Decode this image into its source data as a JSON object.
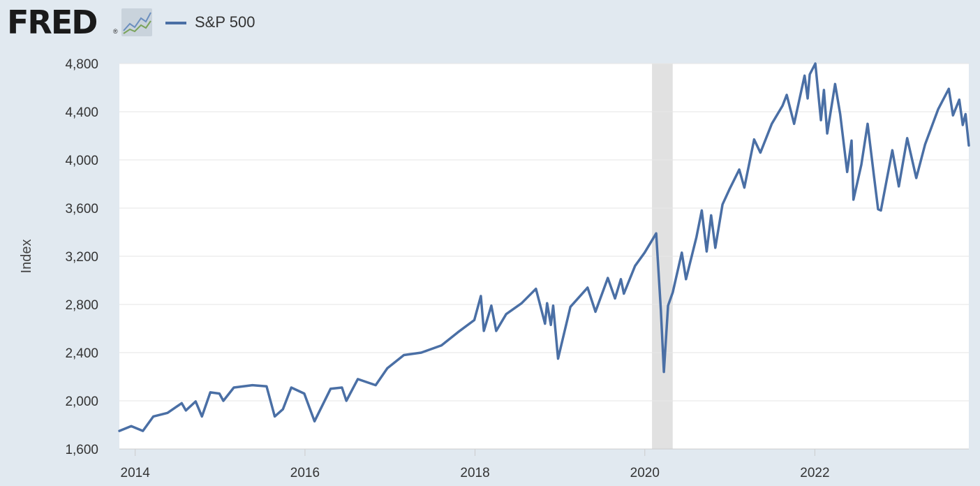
{
  "header": {
    "logo_text": "FRED",
    "logo_registered": "®",
    "logo_icon": "line-chart-icon"
  },
  "chart_data": {
    "type": "line",
    "ylabel": "Index",
    "ylim": [
      1600,
      4800
    ],
    "y_ticks": [
      1600,
      2000,
      2400,
      2800,
      3200,
      3600,
      4000,
      4400,
      4800
    ],
    "y_tick_labels": [
      "1,600",
      "2,000",
      "2,400",
      "2,800",
      "3,200",
      "3,600",
      "4,000",
      "4,400",
      "4,800"
    ],
    "xlim": [
      "2013-10-25",
      "2023-10-25"
    ],
    "x_ticks": [
      "2014-01-01",
      "2016-01-01",
      "2018-01-01",
      "2020-01-01",
      "2022-01-01"
    ],
    "x_tick_labels": [
      "2014",
      "2016",
      "2018",
      "2020",
      "2022"
    ],
    "grid": true,
    "legend_position": "top-left",
    "recession_shading": [
      {
        "start": "2020-02-01",
        "end": "2020-04-30",
        "color": "#e1e1e1"
      }
    ],
    "series": [
      {
        "name": "S&P 500",
        "color": "#4a6fa5",
        "x": [
          "2013-10-25",
          "2013-12-15",
          "2014-02-03",
          "2014-03-20",
          "2014-05-20",
          "2014-07-20",
          "2014-08-07",
          "2014-09-18",
          "2014-10-15",
          "2014-11-20",
          "2014-12-29",
          "2015-01-15",
          "2015-03-01",
          "2015-05-20",
          "2015-07-20",
          "2015-08-24",
          "2015-09-28",
          "2015-11-03",
          "2015-12-29",
          "2016-02-11",
          "2016-04-20",
          "2016-06-08",
          "2016-06-27",
          "2016-08-15",
          "2016-10-31",
          "2016-12-20",
          "2017-03-01",
          "2017-05-15",
          "2017-08-10",
          "2017-10-20",
          "2017-12-29",
          "2018-01-26",
          "2018-02-08",
          "2018-03-12",
          "2018-04-02",
          "2018-05-15",
          "2018-07-20",
          "2018-09-20",
          "2018-10-29",
          "2018-11-07",
          "2018-11-23",
          "2018-12-03",
          "2018-12-24",
          "2019-02-15",
          "2019-04-30",
          "2019-06-03",
          "2019-07-26",
          "2019-08-26",
          "2019-09-20",
          "2019-10-03",
          "2019-11-20",
          "2019-12-31",
          "2020-02-19",
          "2020-03-10",
          "2020-03-23",
          "2020-04-10",
          "2020-04-30",
          "2020-06-08",
          "2020-06-26",
          "2020-08-10",
          "2020-09-02",
          "2020-09-23",
          "2020-10-12",
          "2020-10-30",
          "2020-11-30",
          "2020-12-31",
          "2021-02-10",
          "2021-03-04",
          "2021-04-15",
          "2021-05-12",
          "2021-06-30",
          "2021-08-15",
          "2021-09-02",
          "2021-10-04",
          "2021-11-18",
          "2021-12-01",
          "2021-12-10",
          "2022-01-03",
          "2022-01-27",
          "2022-02-09",
          "2022-02-23",
          "2022-03-29",
          "2022-04-20",
          "2022-05-20",
          "2022-06-08",
          "2022-06-16",
          "2022-07-20",
          "2022-08-16",
          "2022-09-12",
          "2022-09-30",
          "2022-10-12",
          "2022-11-30",
          "2022-12-28",
          "2023-02-02",
          "2023-03-13",
          "2023-04-20",
          "2023-06-15",
          "2023-07-31",
          "2023-08-18",
          "2023-09-14",
          "2023-09-29",
          "2023-10-11",
          "2023-10-25"
        ],
        "values": [
          1750,
          1790,
          1750,
          1870,
          1900,
          1980,
          1920,
          1995,
          1870,
          2070,
          2060,
          2000,
          2110,
          2130,
          2120,
          1870,
          1930,
          2110,
          2060,
          1830,
          2100,
          2110,
          2000,
          2180,
          2130,
          2270,
          2380,
          2400,
          2460,
          2570,
          2670,
          2870,
          2580,
          2790,
          2580,
          2720,
          2810,
          2930,
          2640,
          2810,
          2630,
          2790,
          2350,
          2780,
          2940,
          2740,
          3020,
          2850,
          3010,
          2890,
          3120,
          3230,
          3390,
          2750,
          2240,
          2790,
          2900,
          3230,
          3010,
          3360,
          3580,
          3240,
          3540,
          3270,
          3630,
          3760,
          3920,
          3770,
          4170,
          4060,
          4300,
          4450,
          4540,
          4300,
          4700,
          4510,
          4710,
          4800,
          4330,
          4580,
          4220,
          4630,
          4380,
          3900,
          4160,
          3670,
          3960,
          4300,
          3870,
          3590,
          3580,
          4080,
          3780,
          4180,
          3850,
          4130,
          4420,
          4590,
          4370,
          4500,
          4290,
          4380,
          4120
        ]
      }
    ]
  }
}
